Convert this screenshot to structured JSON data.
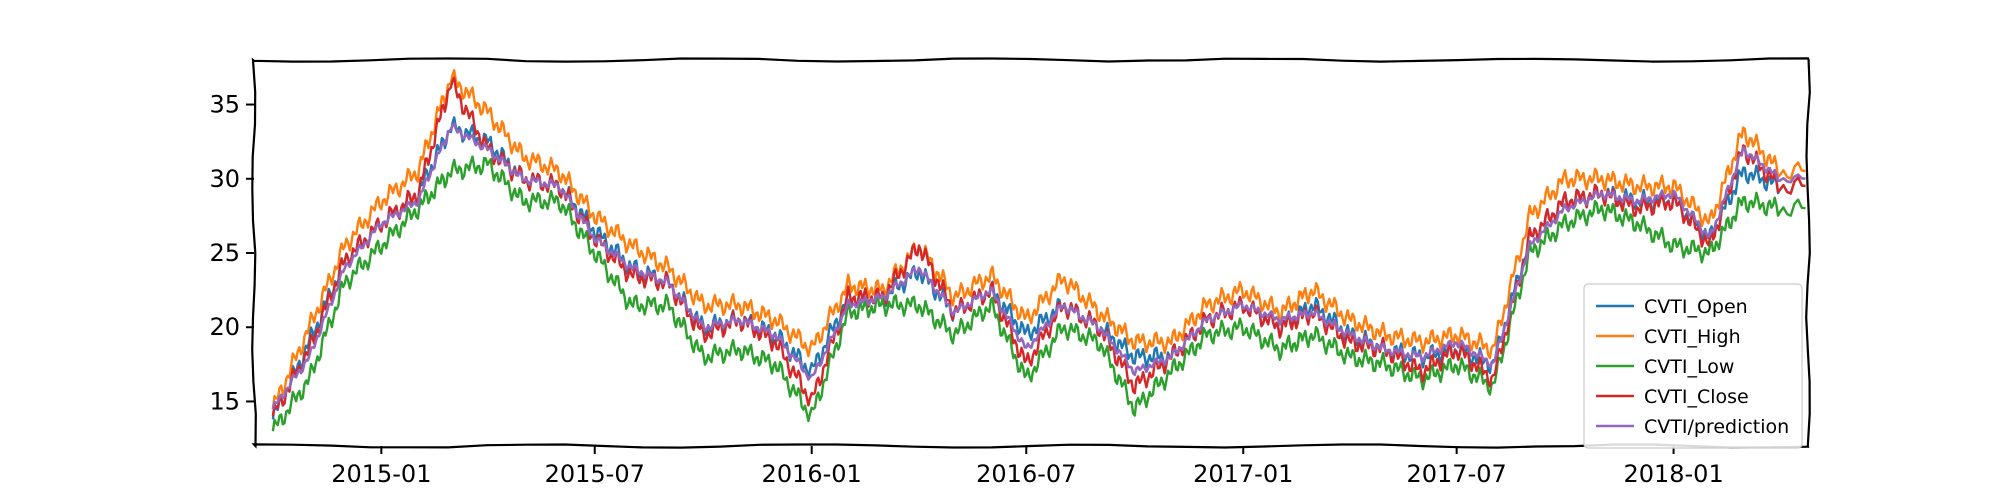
{
  "chart_data": {
    "type": "line",
    "title": "",
    "xlabel": "",
    "ylabel": "",
    "x_range": [
      "2014-09-15",
      "2018-04-25"
    ],
    "ylim": [
      12,
      38
    ],
    "x_ticks": [
      {
        "date": "2015-01-01",
        "label": "2015-01"
      },
      {
        "date": "2015-07-01",
        "label": "2015-07"
      },
      {
        "date": "2016-01-01",
        "label": "2016-01"
      },
      {
        "date": "2016-07-01",
        "label": "2016-07"
      },
      {
        "date": "2017-01-01",
        "label": "2017-01"
      },
      {
        "date": "2017-07-01",
        "label": "2017-07"
      },
      {
        "date": "2018-01-01",
        "label": "2018-01"
      }
    ],
    "y_ticks": [
      15,
      20,
      25,
      30,
      35
    ],
    "grid": false,
    "legend_position": "lower-right",
    "x": [
      "2014-10-01",
      "2014-11-01",
      "2014-12-01",
      "2015-01-01",
      "2015-02-01",
      "2015-03-01",
      "2015-04-01",
      "2015-05-01",
      "2015-06-01",
      "2015-07-01",
      "2015-08-01",
      "2015-09-01",
      "2015-10-01",
      "2015-11-01",
      "2015-12-01",
      "2016-01-01",
      "2016-02-01",
      "2016-03-01",
      "2016-04-01",
      "2016-05-01",
      "2016-06-01",
      "2016-07-01",
      "2016-08-01",
      "2016-09-01",
      "2016-10-01",
      "2016-11-01",
      "2016-12-01",
      "2017-01-01",
      "2017-02-01",
      "2017-03-01",
      "2017-04-01",
      "2017-05-01",
      "2017-06-01",
      "2017-07-01",
      "2017-08-01",
      "2017-09-01",
      "2017-10-01",
      "2017-11-01",
      "2017-12-01",
      "2018-01-01",
      "2018-02-01",
      "2018-03-01",
      "2018-04-01"
    ],
    "series": [
      {
        "name": "CVTI_Open",
        "color": "#1f77b4",
        "values": [
          13.8,
          19.0,
          24.5,
          27.0,
          29.0,
          33.5,
          32.5,
          30.0,
          29.5,
          26.5,
          24.0,
          23.0,
          20.0,
          20.5,
          19.5,
          17.0,
          22.0,
          22.0,
          23.8,
          21.0,
          22.5,
          19.5,
          21.5,
          20.0,
          18.0,
          18.0,
          20.5,
          21.5,
          20.0,
          21.5,
          19.5,
          18.5,
          18.0,
          18.5,
          17.5,
          26.0,
          28.5,
          29.0,
          28.5,
          28.5,
          26.0,
          30.5,
          29.5
        ]
      },
      {
        "name": "CVTI_High",
        "color": "#ff7f0e",
        "values": [
          14.5,
          20.0,
          25.5,
          28.5,
          30.5,
          36.8,
          34.5,
          31.5,
          30.5,
          27.5,
          25.5,
          24.0,
          21.5,
          21.5,
          20.5,
          18.5,
          22.8,
          22.5,
          25.5,
          22.0,
          23.5,
          20.5,
          23.3,
          21.0,
          19.0,
          19.0,
          21.5,
          22.5,
          21.0,
          22.5,
          20.5,
          19.5,
          19.0,
          19.5,
          18.5,
          27.5,
          30.0,
          30.0,
          29.5,
          29.5,
          27.0,
          33.2,
          30.5
        ]
      },
      {
        "name": "CVTI_Low",
        "color": "#2ca02c",
        "values": [
          13.0,
          16.5,
          23.0,
          25.5,
          28.0,
          30.5,
          31.0,
          28.5,
          28.5,
          25.0,
          21.5,
          21.5,
          18.0,
          18.5,
          17.5,
          14.0,
          21.0,
          21.5,
          21.5,
          19.5,
          21.5,
          16.5,
          20.0,
          19.0,
          14.5,
          17.0,
          19.5,
          20.0,
          18.5,
          19.5,
          18.0,
          17.5,
          16.5,
          17.5,
          16.0,
          25.0,
          27.0,
          28.0,
          27.0,
          25.5,
          25.0,
          28.5,
          28.0
        ]
      },
      {
        "name": "CVTI_Close",
        "color": "#d62728",
        "values": [
          14.0,
          18.5,
          24.5,
          27.0,
          29.0,
          36.5,
          32.0,
          30.0,
          29.5,
          26.0,
          23.5,
          23.0,
          19.5,
          20.5,
          19.0,
          15.0,
          22.0,
          22.0,
          25.5,
          21.0,
          22.5,
          17.5,
          21.5,
          20.0,
          16.0,
          18.0,
          20.5,
          21.5,
          20.0,
          21.0,
          19.0,
          18.5,
          17.0,
          18.5,
          16.5,
          26.0,
          28.5,
          29.0,
          28.0,
          28.5,
          25.5,
          32.0,
          29.5
        ]
      },
      {
        "name": "CVTI/prediction",
        "color": "#9467bd",
        "values": [
          14.5,
          18.0,
          24.0,
          27.0,
          28.5,
          33.5,
          32.0,
          30.0,
          29.5,
          26.0,
          24.0,
          23.0,
          20.0,
          20.5,
          19.5,
          16.5,
          21.5,
          22.0,
          24.0,
          21.0,
          22.5,
          18.5,
          21.5,
          20.0,
          17.0,
          18.0,
          20.5,
          21.5,
          20.5,
          21.0,
          19.5,
          18.5,
          18.0,
          19.0,
          17.5,
          25.5,
          28.0,
          29.0,
          28.5,
          29.0,
          26.0,
          32.0,
          30.0
        ]
      }
    ]
  }
}
